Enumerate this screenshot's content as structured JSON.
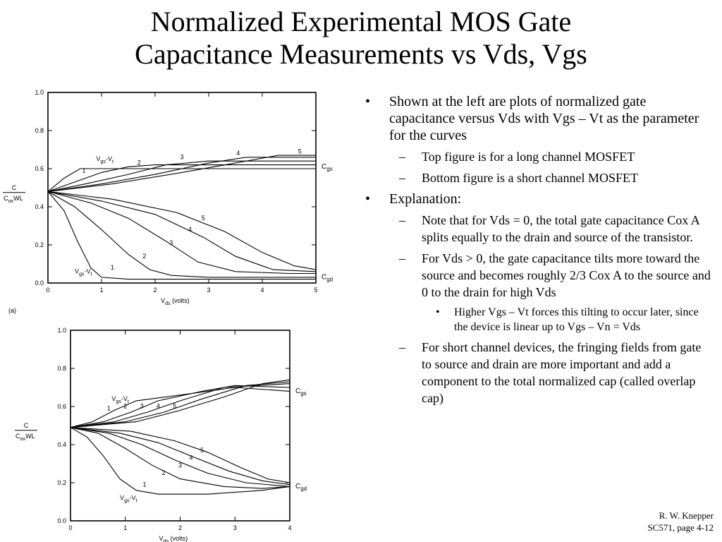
{
  "slide": {
    "title_line1": "Normalized Experimental MOS Gate",
    "title_line2": "Capacitance Measurements vs Vds, Vgs",
    "bullets": [
      {
        "level": 1,
        "text": "Shown at the left are plots of normalized gate capacitance versus Vds with Vgs – Vt as the parameter for the curves"
      },
      {
        "level": 2,
        "text": "Top figure is for a long channel MOSFET"
      },
      {
        "level": 2,
        "text": "Bottom figure is a short channel MOSFET"
      },
      {
        "level": 1,
        "text": "Explanation:"
      },
      {
        "level": 2,
        "text": "Note that for Vds = 0, the total gate capacitance Cox A splits equally to the drain and source of the transistor."
      },
      {
        "level": 2,
        "text": "For Vds > 0, the gate capacitance tilts more toward the source and becomes roughly 2/3 Cox A to the source and 0 to the drain for high Vds"
      },
      {
        "level": 3,
        "text": "Higher Vgs – Vt forces this tilting to occur later, since the device is linear up to Vgs – Vn = Vds"
      },
      {
        "level": 2,
        "text": "For short channel devices, the fringing fields from gate to source and drain are more important and add a component to the total normalized cap (called overlap cap)"
      }
    ],
    "footer_line1": "R. W. Knepper",
    "footer_line2": "SC571,  page 4-12"
  },
  "chart_data": [
    {
      "type": "line",
      "panel_label": "(a)",
      "xlim": [
        0,
        5
      ],
      "ylim": [
        0,
        1.0
      ],
      "x_ticks": [
        0,
        1,
        2,
        3,
        4,
        5
      ],
      "y_ticks": [
        "0.0",
        "0.2",
        "0.4",
        "0.6",
        "0.8",
        "1.0"
      ],
      "xlabel_main": "V",
      "xlabel_sub": "ds",
      "xlabel_tail": " (volts)",
      "ylabel_num": "C",
      "ylabel_den_main": "C",
      "ylabel_den_sub": "ox",
      "ylabel_den_tail": "WL",
      "cgs_label_main": "C",
      "cgs_label_sub": "gs",
      "cgd_label_main": "C",
      "cgd_label_sub": "gd",
      "vgs_label_cgs": {
        "main": "V",
        "sub": "gs",
        "mid": "-V",
        "sub2": "t"
      },
      "vgs_label_cgd": {
        "main": "V",
        "sub": "gs",
        "mid": "-V",
        "sub2": "t"
      },
      "cgs_series": [
        {
          "name": "1",
          "points": [
            [
              0,
              0.48
            ],
            [
              0.3,
              0.55
            ],
            [
              0.6,
              0.6
            ],
            [
              1.0,
              0.6
            ],
            [
              2,
              0.6
            ],
            [
              3,
              0.6
            ],
            [
              4,
              0.6
            ],
            [
              5,
              0.6
            ]
          ]
        },
        {
          "name": "2",
          "points": [
            [
              0,
              0.48
            ],
            [
              0.5,
              0.53
            ],
            [
              1.0,
              0.58
            ],
            [
              1.5,
              0.61
            ],
            [
              2,
              0.62
            ],
            [
              3,
              0.62
            ],
            [
              4,
              0.62
            ],
            [
              5,
              0.62
            ]
          ]
        },
        {
          "name": "3",
          "points": [
            [
              0,
              0.48
            ],
            [
              0.7,
              0.52
            ],
            [
              1.5,
              0.57
            ],
            [
              2.2,
              0.62
            ],
            [
              3,
              0.64
            ],
            [
              4,
              0.64
            ],
            [
              5,
              0.64
            ]
          ]
        },
        {
          "name": "4",
          "points": [
            [
              0,
              0.48
            ],
            [
              1.0,
              0.52
            ],
            [
              2.0,
              0.57
            ],
            [
              3.0,
              0.63
            ],
            [
              3.7,
              0.66
            ],
            [
              4.5,
              0.66
            ],
            [
              5,
              0.66
            ]
          ]
        },
        {
          "name": "5",
          "points": [
            [
              0,
              0.48
            ],
            [
              1.2,
              0.52
            ],
            [
              2.5,
              0.58
            ],
            [
              3.5,
              0.63
            ],
            [
              4.3,
              0.67
            ],
            [
              5,
              0.67
            ]
          ]
        }
      ],
      "cgd_series": [
        {
          "name": "1",
          "points": [
            [
              0,
              0.48
            ],
            [
              0.3,
              0.38
            ],
            [
              0.55,
              0.22
            ],
            [
              0.8,
              0.08
            ],
            [
              1.0,
              0.03
            ],
            [
              1.5,
              0.02
            ],
            [
              2.5,
              0.02
            ],
            [
              5,
              0.02
            ]
          ]
        },
        {
          "name": "2",
          "points": [
            [
              0,
              0.48
            ],
            [
              0.5,
              0.4
            ],
            [
              1.0,
              0.28
            ],
            [
              1.5,
              0.15
            ],
            [
              1.9,
              0.07
            ],
            [
              2.3,
              0.04
            ],
            [
              3,
              0.03
            ],
            [
              5,
              0.03
            ]
          ]
        },
        {
          "name": "3",
          "points": [
            [
              0,
              0.48
            ],
            [
              0.8,
              0.42
            ],
            [
              1.5,
              0.34
            ],
            [
              2.2,
              0.22
            ],
            [
              2.8,
              0.11
            ],
            [
              3.5,
              0.06
            ],
            [
              4.5,
              0.05
            ],
            [
              5,
              0.05
            ]
          ]
        },
        {
          "name": "4",
          "points": [
            [
              0,
              0.48
            ],
            [
              1.0,
              0.43
            ],
            [
              2.0,
              0.36
            ],
            [
              2.9,
              0.24
            ],
            [
              3.5,
              0.14
            ],
            [
              4.2,
              0.07
            ],
            [
              5,
              0.06
            ]
          ]
        },
        {
          "name": "5",
          "points": [
            [
              0,
              0.48
            ],
            [
              1.2,
              0.44
            ],
            [
              2.4,
              0.37
            ],
            [
              3.3,
              0.27
            ],
            [
              4.0,
              0.16
            ],
            [
              4.6,
              0.09
            ],
            [
              5,
              0.07
            ]
          ]
        }
      ],
      "grid": false
    },
    {
      "type": "line",
      "xlim": [
        0,
        4
      ],
      "ylim": [
        0,
        1.0
      ],
      "x_ticks": [
        0,
        1,
        2,
        3,
        4
      ],
      "y_ticks": [
        "0.0",
        "0.2",
        "0.4",
        "0.6",
        "0.8",
        "1.0"
      ],
      "xlabel_main": "V",
      "xlabel_sub": "ds",
      "xlabel_tail": " (volts)",
      "ylabel_num": "C",
      "ylabel_den_main": "C",
      "ylabel_den_sub": "ox",
      "ylabel_den_tail": "WL",
      "cgs_label_main": "C",
      "cgs_label_sub": "gs",
      "cgd_label_main": "C",
      "cgd_label_sub": "gd",
      "vgs_label_cgs": {
        "main": "V",
        "sub": "gs",
        "mid": "-V",
        "sub2": "t"
      },
      "vgs_label_cgd": {
        "main": "V",
        "sub": "gs",
        "mid": "-V",
        "sub2": "t"
      },
      "cgs_series": [
        {
          "name": "1",
          "points": [
            [
              0,
              0.49
            ],
            [
              0.4,
              0.52
            ],
            [
              0.8,
              0.58
            ],
            [
              1.2,
              0.63
            ],
            [
              2,
              0.66
            ],
            [
              3,
              0.7
            ],
            [
              4,
              0.68
            ]
          ]
        },
        {
          "name": "2",
          "points": [
            [
              0,
              0.49
            ],
            [
              0.6,
              0.52
            ],
            [
              1.1,
              0.57
            ],
            [
              1.6,
              0.63
            ],
            [
              2.4,
              0.68
            ],
            [
              3,
              0.71
            ],
            [
              4,
              0.7
            ]
          ]
        },
        {
          "name": "3",
          "points": [
            [
              0,
              0.49
            ],
            [
              0.8,
              0.52
            ],
            [
              1.4,
              0.57
            ],
            [
              2.0,
              0.63
            ],
            [
              2.8,
              0.7
            ],
            [
              4,
              0.72
            ]
          ]
        },
        {
          "name": "4",
          "points": [
            [
              0,
              0.49
            ],
            [
              1.0,
              0.52
            ],
            [
              1.7,
              0.57
            ],
            [
              2.4,
              0.64
            ],
            [
              3.2,
              0.71
            ],
            [
              4,
              0.73
            ]
          ]
        },
        {
          "name": "5",
          "points": [
            [
              0,
              0.49
            ],
            [
              1.2,
              0.52
            ],
            [
              2.0,
              0.58
            ],
            [
              2.8,
              0.65
            ],
            [
              3.5,
              0.72
            ],
            [
              4,
              0.74
            ]
          ]
        }
      ],
      "cgd_series": [
        {
          "name": "1",
          "points": [
            [
              0,
              0.49
            ],
            [
              0.3,
              0.44
            ],
            [
              0.6,
              0.34
            ],
            [
              0.9,
              0.22
            ],
            [
              1.2,
              0.16
            ],
            [
              1.6,
              0.14
            ],
            [
              2.5,
              0.14
            ],
            [
              3.5,
              0.16
            ],
            [
              4,
              0.18
            ]
          ]
        },
        {
          "name": "2",
          "points": [
            [
              0,
              0.49
            ],
            [
              0.5,
              0.46
            ],
            [
              1.0,
              0.38
            ],
            [
              1.5,
              0.29
            ],
            [
              2.0,
              0.22
            ],
            [
              2.8,
              0.18
            ],
            [
              3.5,
              0.17
            ],
            [
              4,
              0.18
            ]
          ]
        },
        {
          "name": "3",
          "points": [
            [
              0,
              0.49
            ],
            [
              0.7,
              0.46
            ],
            [
              1.3,
              0.4
            ],
            [
              1.9,
              0.32
            ],
            [
              2.5,
              0.25
            ],
            [
              3.2,
              0.2
            ],
            [
              4,
              0.18
            ]
          ]
        },
        {
          "name": "4",
          "points": [
            [
              0,
              0.49
            ],
            [
              0.9,
              0.46
            ],
            [
              1.6,
              0.41
            ],
            [
              2.2,
              0.34
            ],
            [
              2.9,
              0.26
            ],
            [
              3.5,
              0.21
            ],
            [
              4,
              0.19
            ]
          ]
        },
        {
          "name": "5",
          "points": [
            [
              0,
              0.49
            ],
            [
              1.1,
              0.47
            ],
            [
              1.9,
              0.42
            ],
            [
              2.5,
              0.36
            ],
            [
              3.1,
              0.28
            ],
            [
              3.6,
              0.22
            ],
            [
              4,
              0.2
            ]
          ]
        }
      ],
      "grid": false
    }
  ]
}
